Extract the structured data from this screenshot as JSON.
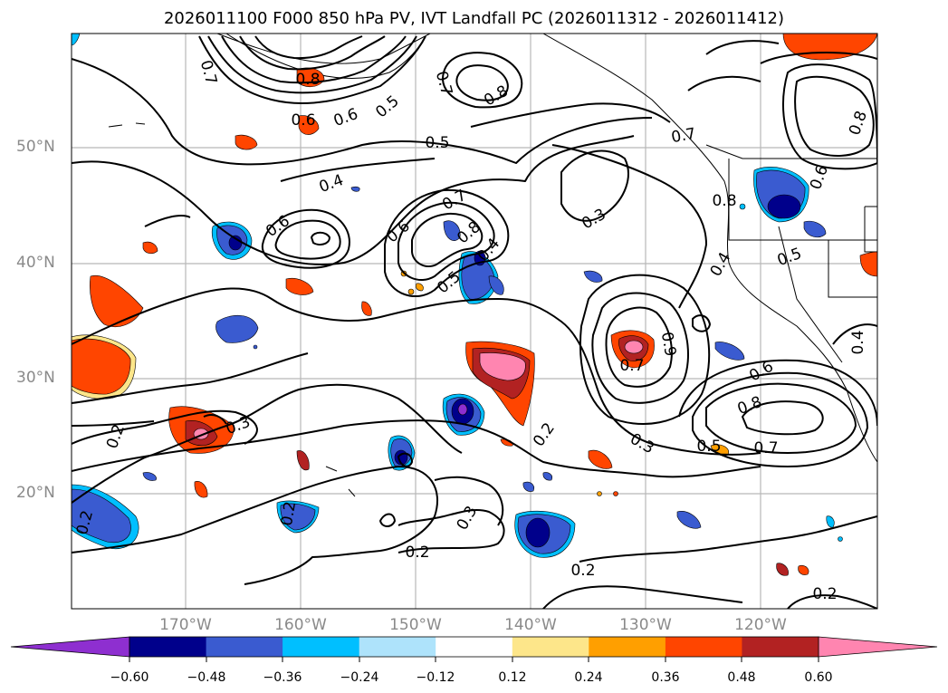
{
  "title": "2026011100 F000 850 hPa PV, IVT Landfall PC (2026011312 - 2026011412)",
  "axes": {
    "lat_labels": [
      "50°N",
      "40°N",
      "30°N",
      "20°N"
    ],
    "lon_labels": [
      "170°W",
      "160°W",
      "150°W",
      "140°W",
      "130°W",
      "120°W"
    ]
  },
  "contour_labels": [
    "0.7",
    "0.8",
    "0.6",
    "0.5",
    "0.7",
    "0.8",
    "0.5",
    "0.7",
    "0.6",
    "0.8",
    "0.4",
    "0.6",
    "0.6",
    "0.7",
    "0.8",
    "0.5",
    "0.4",
    "0.3",
    "0.8",
    "0.6",
    "0.5",
    "0.4",
    "0.6",
    "0.8",
    "0.7",
    "0.5",
    "0.4",
    "0.2",
    "0.3",
    "0.2",
    "0.7",
    "0.9",
    "0.3",
    "0.2",
    "0.3",
    "0.2",
    "0.2",
    "0.2",
    "0.2"
  ],
  "colorbar": {
    "ticks": [
      "−0.60",
      "−0.48",
      "−0.36",
      "−0.24",
      "−0.12",
      "0.12",
      "0.24",
      "0.36",
      "0.48",
      "0.60"
    ],
    "colors": [
      "#8e2fd0",
      "#00008b",
      "#3a5bd0",
      "#00bfff",
      "#aee3fb",
      "#ffffff",
      "#fde68a",
      "#ff9f00",
      "#ff4500",
      "#b22222",
      "#ff85b0"
    ]
  },
  "fill_colors": {
    "neg1": "#00bfff",
    "neg2": "#3a5bd0",
    "neg3": "#00008b",
    "neg4": "#8e2fd0",
    "pos1": "#fde68a",
    "pos2": "#ff9f00",
    "pos3": "#ff4500",
    "pos4": "#b22222",
    "pos5": "#ff85b0"
  }
}
